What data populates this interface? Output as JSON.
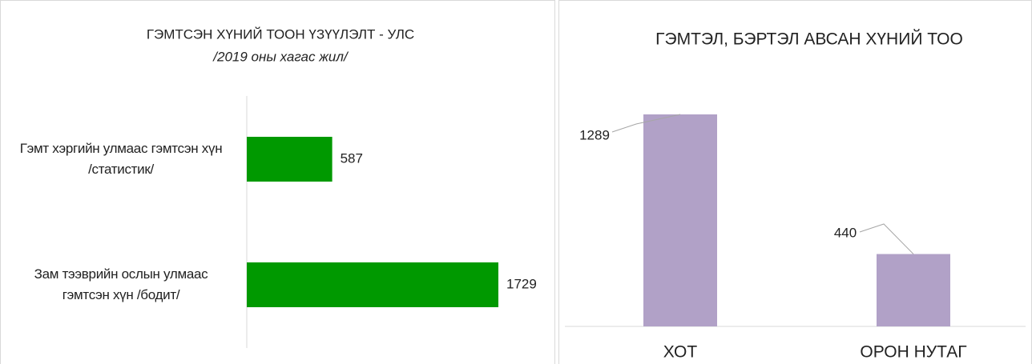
{
  "chart_data": [
    {
      "type": "barh",
      "title": "ГЭМТСЭН ХҮНИЙ ТООН ҮЗҮҮЛЭЛТ - УЛС",
      "subtitle": "/2019 оны хагас жил/",
      "categories": [
        "Гэмт хэргийн улмаас гэмтсэн хүн\n/статистик/",
        "Зам тээврийн ослын улмаас\nгэмтсэн хүн /бодит/"
      ],
      "values": [
        587,
        1729
      ],
      "color": "#009900"
    },
    {
      "type": "bar",
      "title": "ГЭМТЭЛ, БЭРТЭЛ АВСАН ХҮНИЙ ТОО",
      "categories": [
        "ХОТ",
        "ОРОН НУТАГ"
      ],
      "values": [
        1289,
        440
      ],
      "color": "#b1a1c7"
    }
  ]
}
